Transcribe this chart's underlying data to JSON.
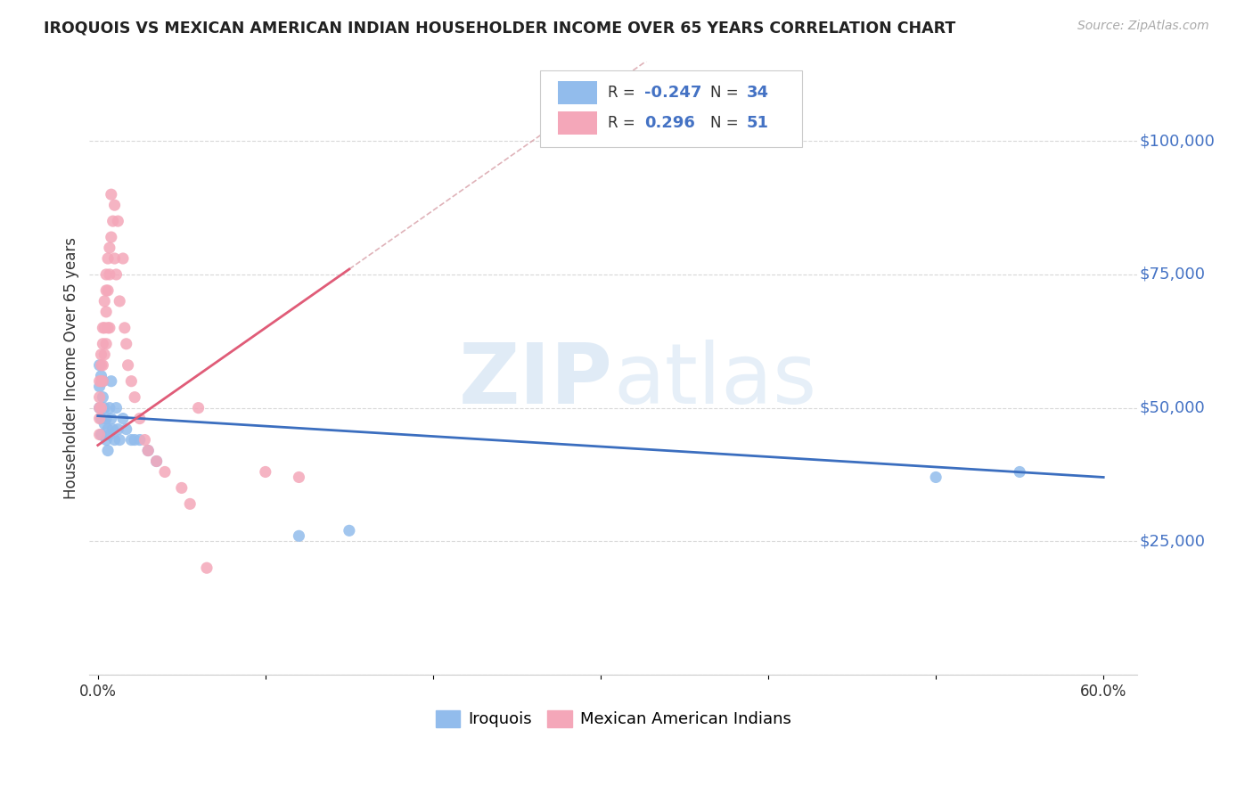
{
  "title": "IROQUOIS VS MEXICAN AMERICAN INDIAN HOUSEHOLDER INCOME OVER 65 YEARS CORRELATION CHART",
  "source": "Source: ZipAtlas.com",
  "ylabel": "Householder Income Over 65 years",
  "legend_iroquois": "Iroquois",
  "legend_mexican": "Mexican American Indians",
  "color_iroquois": "#92BCEC",
  "color_mexican": "#F4A7B9",
  "color_iroquois_line": "#3B6EBF",
  "color_mexican_line": "#E05C78",
  "color_diagonal": "#D8A0A8",
  "background_color": "#FFFFFF",
  "iroquois_x": [
    0.001,
    0.001,
    0.001,
    0.002,
    0.002,
    0.002,
    0.003,
    0.003,
    0.004,
    0.004,
    0.005,
    0.005,
    0.006,
    0.006,
    0.007,
    0.007,
    0.008,
    0.008,
    0.009,
    0.01,
    0.011,
    0.012,
    0.013,
    0.015,
    0.017,
    0.02,
    0.022,
    0.025,
    0.03,
    0.035,
    0.12,
    0.15,
    0.5,
    0.55
  ],
  "iroquois_y": [
    58000,
    54000,
    50000,
    56000,
    48000,
    45000,
    55000,
    52000,
    50000,
    47000,
    48000,
    44000,
    46000,
    42000,
    50000,
    45000,
    55000,
    48000,
    46000,
    44000,
    50000,
    46000,
    44000,
    48000,
    46000,
    44000,
    44000,
    44000,
    42000,
    40000,
    26000,
    27000,
    37000,
    38000
  ],
  "mexican_x": [
    0.001,
    0.001,
    0.001,
    0.001,
    0.001,
    0.002,
    0.002,
    0.002,
    0.002,
    0.003,
    0.003,
    0.003,
    0.003,
    0.004,
    0.004,
    0.004,
    0.005,
    0.005,
    0.005,
    0.005,
    0.006,
    0.006,
    0.006,
    0.007,
    0.007,
    0.007,
    0.008,
    0.008,
    0.009,
    0.01,
    0.01,
    0.011,
    0.012,
    0.013,
    0.015,
    0.016,
    0.017,
    0.018,
    0.02,
    0.022,
    0.025,
    0.028,
    0.03,
    0.035,
    0.04,
    0.05,
    0.055,
    0.06,
    0.065,
    0.1,
    0.12
  ],
  "mexican_y": [
    55000,
    52000,
    50000,
    48000,
    45000,
    60000,
    58000,
    55000,
    50000,
    65000,
    62000,
    58000,
    55000,
    70000,
    65000,
    60000,
    75000,
    72000,
    68000,
    62000,
    78000,
    72000,
    65000,
    80000,
    75000,
    65000,
    90000,
    82000,
    85000,
    88000,
    78000,
    75000,
    85000,
    70000,
    78000,
    65000,
    62000,
    58000,
    55000,
    52000,
    48000,
    44000,
    42000,
    40000,
    38000,
    35000,
    32000,
    50000,
    20000,
    38000,
    37000
  ],
  "xlim": [
    -0.005,
    0.62
  ],
  "ylim": [
    0,
    115000
  ],
  "ytick_vals": [
    0,
    25000,
    50000,
    75000,
    100000
  ],
  "ytick_labels": [
    "",
    "$25,000",
    "$50,000",
    "$75,000",
    "$100,000"
  ]
}
